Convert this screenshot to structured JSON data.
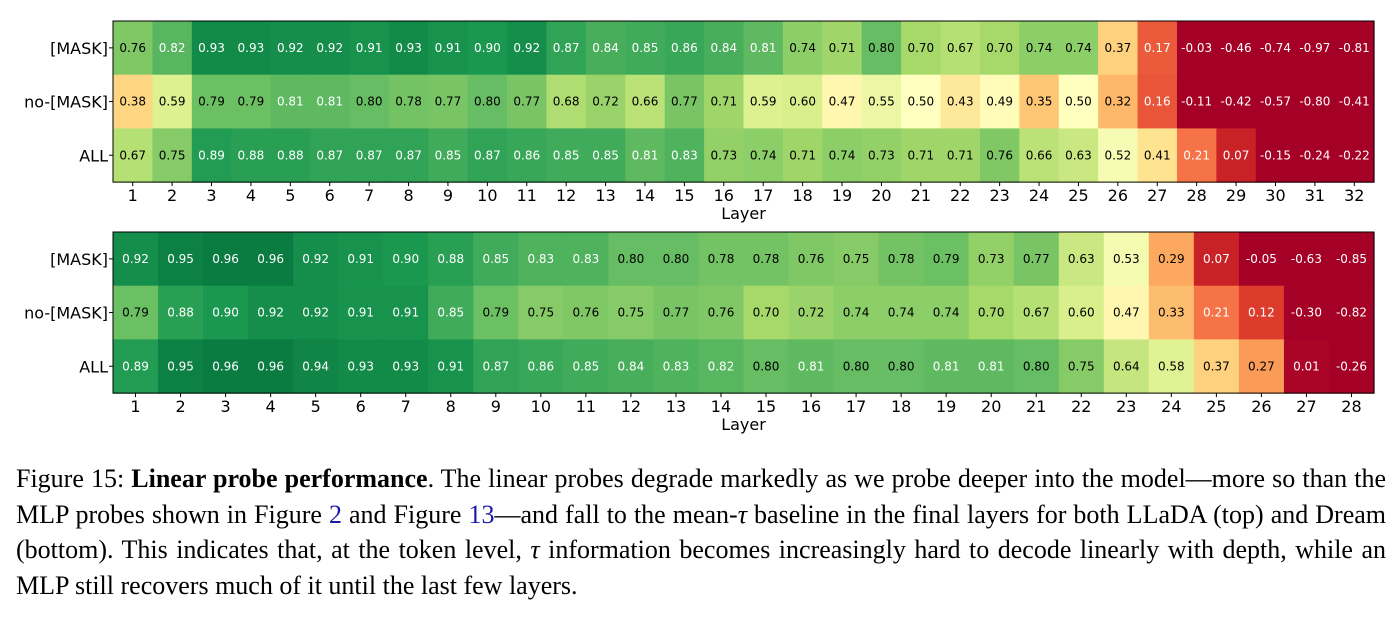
{
  "chart_data": [
    {
      "type": "heatmap",
      "panel": "top",
      "xlabel": "Layer",
      "rows": [
        "[MASK]",
        "no-[MASK]",
        "ALL"
      ],
      "columns": [
        "1",
        "2",
        "3",
        "4",
        "5",
        "6",
        "7",
        "8",
        "9",
        "10",
        "11",
        "12",
        "13",
        "14",
        "15",
        "16",
        "17",
        "18",
        "19",
        "20",
        "21",
        "22",
        "23",
        "24",
        "25",
        "26",
        "27",
        "28",
        "29",
        "30",
        "31",
        "32"
      ],
      "values": [
        [
          "0.76",
          "0.82",
          "0.93",
          "0.93",
          "0.92",
          "0.92",
          "0.91",
          "0.93",
          "0.91",
          "0.90",
          "0.92",
          "0.87",
          "0.84",
          "0.85",
          "0.86",
          "0.84",
          "0.81",
          "0.74",
          "0.71",
          "0.80",
          "0.70",
          "0.67",
          "0.70",
          "0.74",
          "0.74",
          "0.37",
          "0.17",
          "-0.03",
          "-0.46",
          "-0.74",
          "-0.97",
          "-0.81"
        ],
        [
          "0.38",
          "0.59",
          "0.79",
          "0.79",
          "0.81",
          "0.81",
          "0.80",
          "0.78",
          "0.77",
          "0.80",
          "0.77",
          "0.68",
          "0.72",
          "0.66",
          "0.77",
          "0.71",
          "0.59",
          "0.60",
          "0.47",
          "0.55",
          "0.50",
          "0.43",
          "0.49",
          "0.35",
          "0.50",
          "0.32",
          "0.16",
          "-0.11",
          "-0.42",
          "-0.57",
          "-0.80",
          "-0.41"
        ],
        [
          "0.67",
          "0.75",
          "0.89",
          "0.88",
          "0.88",
          "0.87",
          "0.87",
          "0.87",
          "0.85",
          "0.87",
          "0.86",
          "0.85",
          "0.85",
          "0.81",
          "0.83",
          "0.73",
          "0.74",
          "0.71",
          "0.74",
          "0.73",
          "0.71",
          "0.71",
          "0.76",
          "0.66",
          "0.63",
          "0.52",
          "0.41",
          "0.21",
          "0.07",
          "-0.15",
          "-0.24",
          "-0.22"
        ]
      ]
    },
    {
      "type": "heatmap",
      "panel": "bottom",
      "xlabel": "Layer",
      "rows": [
        "[MASK]",
        "no-[MASK]",
        "ALL"
      ],
      "columns": [
        "1",
        "2",
        "3",
        "4",
        "5",
        "6",
        "7",
        "8",
        "9",
        "10",
        "11",
        "12",
        "13",
        "14",
        "15",
        "16",
        "17",
        "18",
        "19",
        "20",
        "21",
        "22",
        "23",
        "24",
        "25",
        "26",
        "27",
        "28"
      ],
      "values": [
        [
          "0.92",
          "0.95",
          "0.96",
          "0.96",
          "0.92",
          "0.91",
          "0.90",
          "0.88",
          "0.85",
          "0.83",
          "0.83",
          "0.80",
          "0.80",
          "0.78",
          "0.78",
          "0.76",
          "0.75",
          "0.78",
          "0.79",
          "0.73",
          "0.77",
          "0.63",
          "0.53",
          "0.29",
          "0.07",
          "-0.05",
          "-0.63",
          "-0.85"
        ],
        [
          "0.79",
          "0.88",
          "0.90",
          "0.92",
          "0.92",
          "0.91",
          "0.91",
          "0.85",
          "0.79",
          "0.75",
          "0.76",
          "0.75",
          "0.77",
          "0.76",
          "0.70",
          "0.72",
          "0.74",
          "0.74",
          "0.74",
          "0.70",
          "0.67",
          "0.60",
          "0.47",
          "0.33",
          "0.21",
          "0.12",
          "-0.30",
          "-0.82"
        ],
        [
          "0.89",
          "0.95",
          "0.96",
          "0.96",
          "0.94",
          "0.93",
          "0.93",
          "0.91",
          "0.87",
          "0.86",
          "0.85",
          "0.84",
          "0.83",
          "0.82",
          "0.80",
          "0.81",
          "0.80",
          "0.80",
          "0.81",
          "0.81",
          "0.80",
          "0.75",
          "0.64",
          "0.58",
          "0.37",
          "0.27",
          "0.01",
          "-0.26"
        ]
      ]
    }
  ],
  "caption": {
    "label": "Figure 15: ",
    "title": "Linear probe performance",
    "text1": ". The linear probes degrade markedly as we probe deeper into the model—more so than the MLP probes shown in Figure ",
    "ref1": "2",
    "text2": " and Figure ",
    "ref2": "13",
    "text3": "—and fall to the mean-",
    "tau1": "τ",
    "text4": " baseline in the final layers for both LLaDA (top) and Dream (bottom). This indicates that, at the token level, ",
    "tau2": "τ",
    "text5": " information becomes increasingly hard to decode linearly with depth, while an MLP still recovers much of it until the last few layers."
  }
}
